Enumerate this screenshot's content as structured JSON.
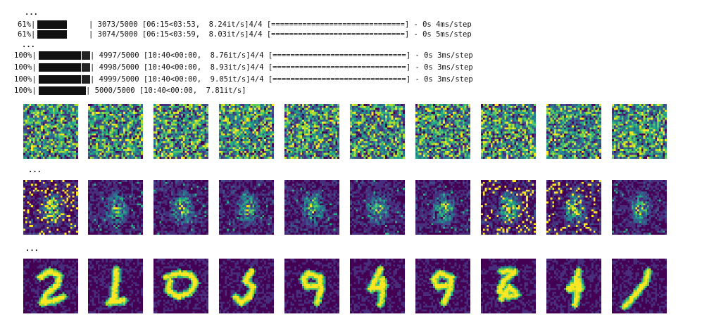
{
  "output": {
    "ellipses": [
      "...",
      "...",
      "...",
      "..."
    ],
    "lines": [
      {
        "prefix": "61%|",
        "suffix": "| 3073/5000 [06:15<03:53,  8.24it/s]4/4 [==============================] - 0s 4ms/step"
      },
      {
        "prefix": "61%|",
        "suffix": "| 3074/5000 [06:15<03:59,  8.03it/s]4/4 [==============================] - 0s 5ms/step"
      },
      {
        "prefix": "100%|",
        "suffix": "| 4997/5000 [10:40<00:00,  8.76it/s]4/4 [==============================] - 0s 3ms/step"
      },
      {
        "prefix": "100%|",
        "suffix": "| 4998/5000 [10:40<00:00,  8.93it/s]4/4 [==============================] - 0s 3ms/step"
      },
      {
        "prefix": "100%|",
        "suffix": "| 4999/5000 [10:40<00:00,  9.05it/s]4/4 [==============================] - 0s 3ms/step"
      },
      {
        "prefix": "100%|",
        "suffix": "| 5000/5000 [10:40<00:00,  7.81it/s]"
      }
    ]
  }
}
